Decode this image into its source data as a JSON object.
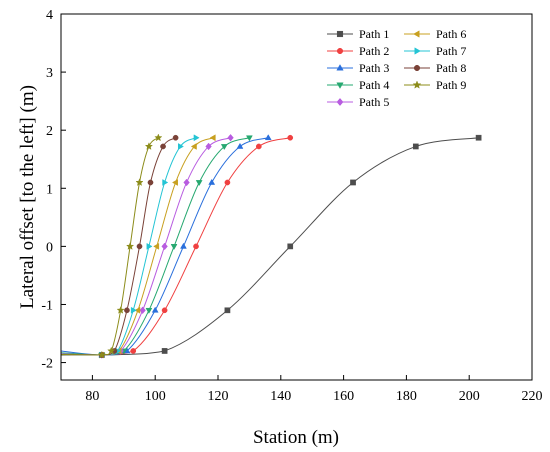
{
  "chart_data": {
    "type": "line",
    "xlabel": "Station (m)",
    "ylabel": "Lateral offset [to the left] (m)",
    "xlim": [
      70,
      220
    ],
    "ylim": [
      -2.3,
      4
    ],
    "xticks": [
      80,
      100,
      120,
      140,
      160,
      180,
      200,
      220
    ],
    "yticks": [
      -2,
      -1,
      0,
      1,
      2,
      3,
      4
    ],
    "legend_position": "top-right",
    "series": [
      {
        "name": "Path 1",
        "color": "#4d4d4d",
        "marker": "square",
        "x": [
          63,
          83,
          103,
          123,
          143,
          163,
          183,
          203
        ],
        "y": [
          -1.87,
          -1.87,
          -1.8,
          -1.1,
          0.0,
          1.1,
          1.72,
          1.87
        ]
      },
      {
        "name": "Path 2",
        "color": "#f04040",
        "marker": "circle",
        "x": [
          73,
          83,
          93,
          103,
          113,
          123,
          133,
          143
        ],
        "y": [
          -1.87,
          -1.87,
          -1.8,
          -1.1,
          0.0,
          1.1,
          1.72,
          1.87
        ]
      },
      {
        "name": "Path 3",
        "color": "#2a6fdc",
        "marker": "triangle-up",
        "x": [
          70,
          83,
          91,
          100,
          109,
          118,
          127,
          136
        ],
        "y": [
          -1.8,
          -1.87,
          -1.8,
          -1.1,
          0.0,
          1.1,
          1.72,
          1.87
        ]
      },
      {
        "name": "Path 4",
        "color": "#26a870",
        "marker": "triangle-down",
        "x": [
          70,
          83,
          90,
          98,
          106,
          114,
          122,
          130
        ],
        "y": [
          -1.83,
          -1.87,
          -1.8,
          -1.1,
          0.0,
          1.1,
          1.72,
          1.87
        ]
      },
      {
        "name": "Path 5",
        "color": "#b85ce0",
        "marker": "diamond",
        "x": [
          70,
          83,
          89,
          96,
          103,
          110,
          117,
          124
        ],
        "y": [
          -1.85,
          -1.87,
          -1.8,
          -1.1,
          0.0,
          1.1,
          1.72,
          1.87
        ]
      },
      {
        "name": "Path 6",
        "color": "#c8a020",
        "marker": "triangle-left",
        "x": [
          70,
          83,
          88.5,
          94.5,
          100.5,
          106.5,
          112.5,
          118.5
        ],
        "y": [
          -1.86,
          -1.87,
          -1.8,
          -1.1,
          0.0,
          1.1,
          1.72,
          1.87
        ]
      },
      {
        "name": "Path 7",
        "color": "#24c4d4",
        "marker": "triangle-right",
        "x": [
          70,
          83,
          88,
          93,
          98,
          103,
          108,
          113
        ],
        "y": [
          -1.86,
          -1.87,
          -1.8,
          -1.1,
          0.0,
          1.1,
          1.72,
          1.87
        ]
      },
      {
        "name": "Path 8",
        "color": "#7a4238",
        "marker": "circle",
        "x": [
          70,
          83,
          87,
          91,
          95,
          98.5,
          102.5,
          106.5
        ],
        "y": [
          -1.86,
          -1.87,
          -1.8,
          -1.1,
          0.0,
          1.1,
          1.72,
          1.87
        ]
      },
      {
        "name": "Path 9",
        "color": "#8c8c1a",
        "marker": "star",
        "x": [
          70,
          83,
          86,
          89,
          92,
          95,
          98,
          101
        ],
        "y": [
          -1.86,
          -1.87,
          -1.8,
          -1.1,
          0.0,
          1.1,
          1.72,
          1.87
        ]
      }
    ]
  }
}
